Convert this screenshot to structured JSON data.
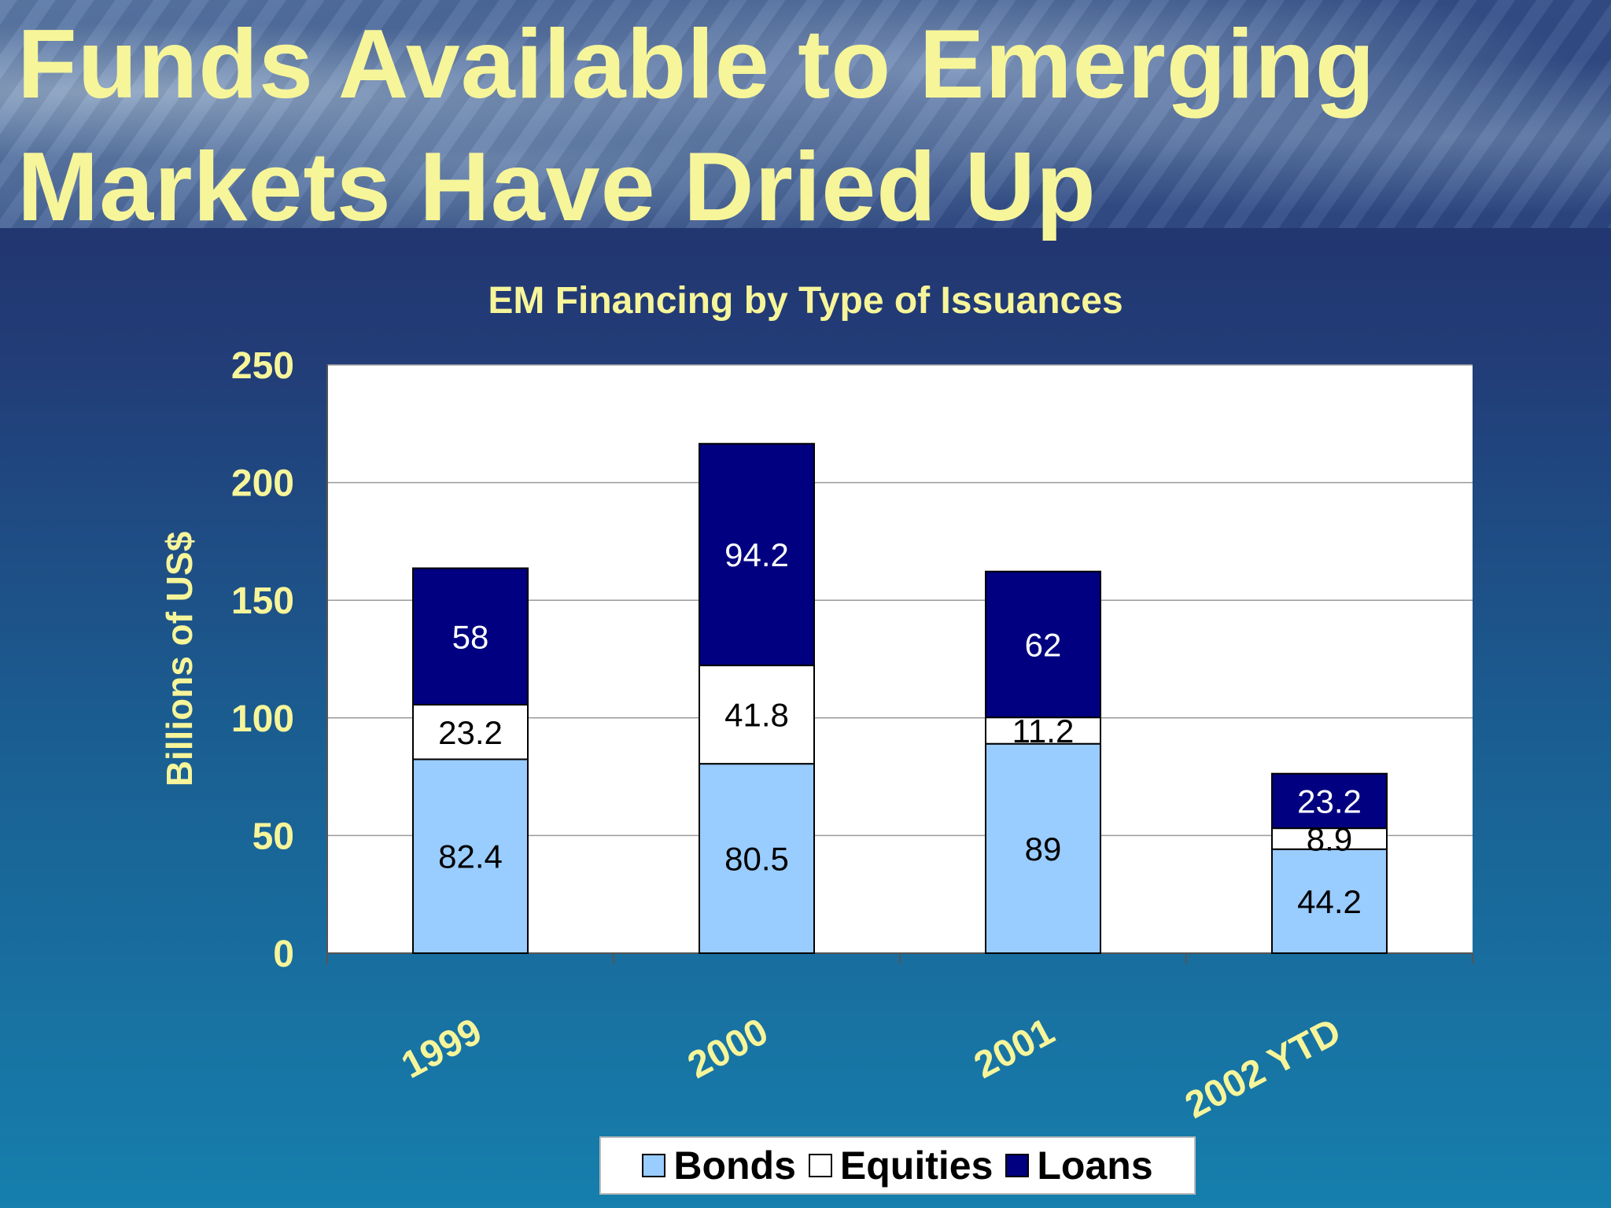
{
  "slide": {
    "title_line1": "Funds Available to Emerging",
    "title_line2": "Markets Have Dried Up",
    "title_color": "#f7f59a"
  },
  "chart_data": {
    "type": "bar",
    "stacked": true,
    "title": "EM Financing by Type of Issuances",
    "ylabel": "Billions of US$",
    "xlabel": "",
    "categories": [
      "1999",
      "2000",
      "2001",
      "2002 YTD"
    ],
    "ylim": [
      0,
      250
    ],
    "yticks": [
      0,
      50,
      100,
      150,
      200,
      250
    ],
    "grid": true,
    "legend_position": "bottom",
    "series": [
      {
        "name": "Bonds",
        "color": "#99ccff",
        "label_color": "#000000",
        "values": [
          82.4,
          80.5,
          89,
          44.2
        ]
      },
      {
        "name": "Equities",
        "color": "#ffffff",
        "label_color": "#000000",
        "values": [
          23.2,
          41.8,
          11.2,
          8.9
        ]
      },
      {
        "name": "Loans",
        "color": "#000080",
        "label_color": "#ffffff",
        "values": [
          58,
          94.2,
          62,
          23.2
        ]
      }
    ],
    "data_labels": [
      [
        "82.4",
        "80.5",
        "89",
        "44.2"
      ],
      [
        "23.2",
        "41.8",
        "11.2",
        "8.9"
      ],
      [
        "58",
        "94.2",
        "62",
        "23.2"
      ]
    ]
  }
}
